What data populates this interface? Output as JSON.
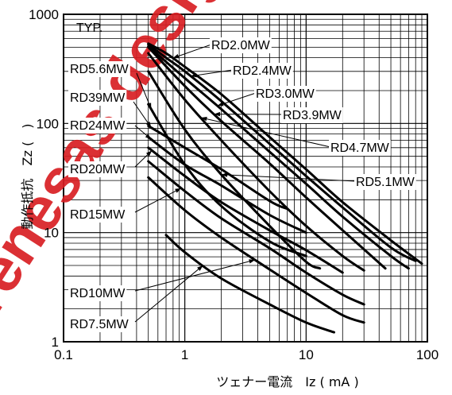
{
  "chart_data": {
    "type": "line",
    "title": "",
    "annotation": "TYP.",
    "xlabel": "ツェナー電流　Iz ( mA )",
    "ylabel": "動作抵抗　Zz (　)",
    "x_scale": "log",
    "y_scale": "log",
    "xlim": [
      0.1,
      100
    ],
    "ylim": [
      1,
      1000
    ],
    "x_tick_labels": [
      "0.1",
      "1",
      "10",
      "100"
    ],
    "y_tick_labels": [
      "1",
      "10",
      "100",
      "1000"
    ],
    "grid": true,
    "watermark": "renesas design",
    "series": [
      {
        "name": "RD2.0MW",
        "x": [
          0.5,
          0.7,
          1,
          2,
          5,
          10,
          20,
          50,
          90
        ],
        "y": [
          540,
          440,
          330,
          185,
          75,
          38,
          19,
          8.5,
          5.2
        ]
      },
      {
        "name": "RD2.4MW",
        "x": [
          0.5,
          0.7,
          1,
          2,
          5,
          10,
          20,
          50,
          80
        ],
        "y": [
          530,
          400,
          300,
          160,
          65,
          33,
          17,
          7.3,
          5.5
        ]
      },
      {
        "name": "RD3.0MW",
        "x": [
          0.5,
          1,
          2,
          5,
          10,
          20,
          50,
          70
        ],
        "y": [
          510,
          260,
          135,
          55,
          28,
          14,
          6.1,
          4.7
        ]
      },
      {
        "name": "RD3.9MW",
        "x": [
          0.5,
          1,
          2,
          5,
          10,
          20,
          45
        ],
        "y": [
          500,
          220,
          105,
          43,
          21,
          10.5,
          4.7
        ]
      },
      {
        "name": "RD4.7MW",
        "x": [
          0.5,
          1,
          2,
          5,
          10,
          20,
          30
        ],
        "y": [
          440,
          165,
          70,
          24,
          11.5,
          6.1,
          4.5
        ]
      },
      {
        "name": "RD5.1MW",
        "x": [
          0.5,
          1,
          2,
          5,
          10,
          13
        ],
        "y": [
          300,
          88,
          34,
          11.5,
          5.4,
          4.7
        ]
      },
      {
        "name": "RD5.6MW",
        "x": [
          0.5,
          1,
          2,
          5,
          10
        ],
        "y": [
          150,
          42,
          17.5,
          8.3,
          6.1
        ]
      },
      {
        "name": "RD39MW",
        "x": [
          0.5,
          1,
          2,
          5,
          7
        ],
        "y": [
          95,
          60,
          38,
          19.5,
          16.5
        ]
      },
      {
        "name": "RD24MW",
        "x": [
          0.5,
          1,
          2,
          5,
          10
        ],
        "y": [
          75,
          42,
          27,
          14.5,
          10
        ]
      },
      {
        "name": "RD20MW",
        "x": [
          0.5,
          1,
          2,
          5,
          10,
          20
        ],
        "y": [
          60,
          33,
          19,
          10.5,
          6.9,
          4.3
        ]
      },
      {
        "name": "RD15MW",
        "x": [
          0.5,
          1,
          2,
          5,
          10,
          20,
          30
        ],
        "y": [
          45,
          24,
          13.5,
          7.2,
          4.3,
          2.7,
          2.2
        ]
      },
      {
        "name": "RD10MW",
        "x": [
          0.5,
          1,
          2,
          5,
          10,
          20,
          30
        ],
        "y": [
          32,
          16,
          9,
          4.6,
          2.8,
          1.75,
          1.5
        ]
      },
      {
        "name": "RD7.5MW",
        "x": [
          0.7,
          1,
          2,
          5,
          10,
          17
        ],
        "y": [
          9.5,
          6.6,
          3.8,
          2.2,
          1.5,
          1.22
        ]
      }
    ]
  }
}
